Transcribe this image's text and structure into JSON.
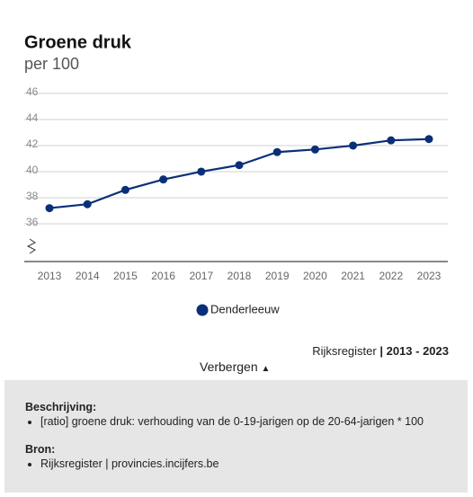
{
  "chart_data": {
    "type": "line",
    "title": "Groene druk",
    "subtitle": "per 100",
    "categories": [
      "2013",
      "2014",
      "2015",
      "2016",
      "2017",
      "2018",
      "2019",
      "2020",
      "2021",
      "2022",
      "2023"
    ],
    "series": [
      {
        "name": "Denderleeuw",
        "color": "#0a2f78",
        "values": [
          37.2,
          37.5,
          38.6,
          39.4,
          40.0,
          40.5,
          41.5,
          41.7,
          42.0,
          42.4,
          42.5
        ]
      }
    ],
    "ylim": [
      33.1,
      46
    ],
    "yticks": [
      36,
      38,
      40,
      42,
      44,
      46
    ],
    "grid": true
  },
  "source": {
    "name": "Rijksregister",
    "period": "| 2013 - 2023"
  },
  "toggle": "Verbergen",
  "details": {
    "description_title": "Beschrijving:",
    "description_items": [
      "[ratio] groene druk: verhouding van de 0-19-jarigen op de 20-64-jarigen * 100"
    ],
    "source_title": "Bron:",
    "source_items": [
      "Rijksregister | provincies.incijfers.be"
    ]
  }
}
